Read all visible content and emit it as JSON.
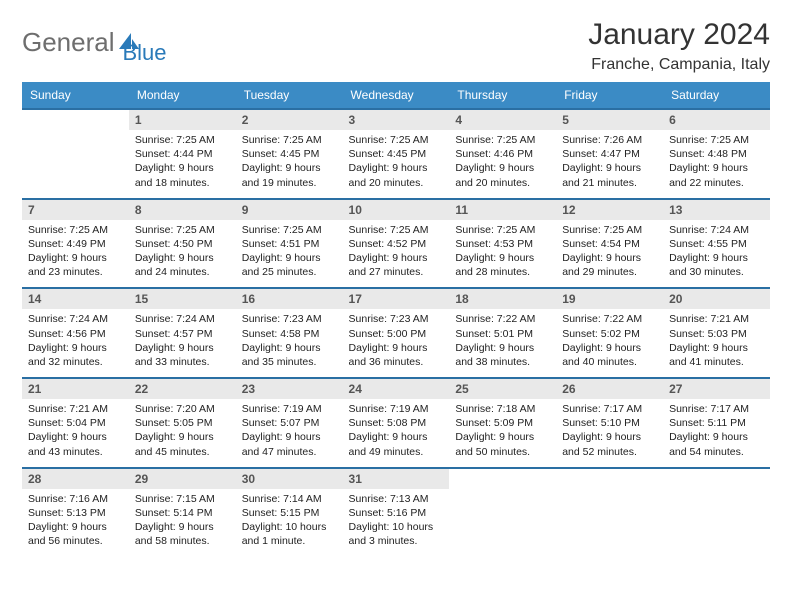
{
  "brand": {
    "part1": "General",
    "part2": "Blue",
    "part1_color": "#6e6e6e",
    "part2_color": "#2a7ab9"
  },
  "title": "January 2024",
  "location": "Franche, Campania, Italy",
  "colors": {
    "header_bg": "#3b8bc5",
    "daynum_bg": "#e9e9e9",
    "rule": "#2a6fa3",
    "text": "#222222",
    "page_bg": "#ffffff"
  },
  "fonts": {
    "title_size_pt": 22,
    "location_size_pt": 12,
    "weekday_size_pt": 9,
    "daynum_size_pt": 9,
    "info_size_pt": 8
  },
  "layout": {
    "columns": 7,
    "aspect_w": 792,
    "aspect_h": 612
  },
  "weekdays": [
    "Sunday",
    "Monday",
    "Tuesday",
    "Wednesday",
    "Thursday",
    "Friday",
    "Saturday"
  ],
  "weeks": [
    {
      "days": [
        null,
        {
          "n": "1",
          "sunrise": "7:25 AM",
          "sunset": "4:44 PM",
          "day_h": "9",
          "day_m": "18"
        },
        {
          "n": "2",
          "sunrise": "7:25 AM",
          "sunset": "4:45 PM",
          "day_h": "9",
          "day_m": "19"
        },
        {
          "n": "3",
          "sunrise": "7:25 AM",
          "sunset": "4:45 PM",
          "day_h": "9",
          "day_m": "20"
        },
        {
          "n": "4",
          "sunrise": "7:25 AM",
          "sunset": "4:46 PM",
          "day_h": "9",
          "day_m": "20"
        },
        {
          "n": "5",
          "sunrise": "7:26 AM",
          "sunset": "4:47 PM",
          "day_h": "9",
          "day_m": "21"
        },
        {
          "n": "6",
          "sunrise": "7:25 AM",
          "sunset": "4:48 PM",
          "day_h": "9",
          "day_m": "22"
        }
      ]
    },
    {
      "days": [
        {
          "n": "7",
          "sunrise": "7:25 AM",
          "sunset": "4:49 PM",
          "day_h": "9",
          "day_m": "23"
        },
        {
          "n": "8",
          "sunrise": "7:25 AM",
          "sunset": "4:50 PM",
          "day_h": "9",
          "day_m": "24"
        },
        {
          "n": "9",
          "sunrise": "7:25 AM",
          "sunset": "4:51 PM",
          "day_h": "9",
          "day_m": "25"
        },
        {
          "n": "10",
          "sunrise": "7:25 AM",
          "sunset": "4:52 PM",
          "day_h": "9",
          "day_m": "27"
        },
        {
          "n": "11",
          "sunrise": "7:25 AM",
          "sunset": "4:53 PM",
          "day_h": "9",
          "day_m": "28"
        },
        {
          "n": "12",
          "sunrise": "7:25 AM",
          "sunset": "4:54 PM",
          "day_h": "9",
          "day_m": "29"
        },
        {
          "n": "13",
          "sunrise": "7:24 AM",
          "sunset": "4:55 PM",
          "day_h": "9",
          "day_m": "30"
        }
      ]
    },
    {
      "days": [
        {
          "n": "14",
          "sunrise": "7:24 AM",
          "sunset": "4:56 PM",
          "day_h": "9",
          "day_m": "32"
        },
        {
          "n": "15",
          "sunrise": "7:24 AM",
          "sunset": "4:57 PM",
          "day_h": "9",
          "day_m": "33"
        },
        {
          "n": "16",
          "sunrise": "7:23 AM",
          "sunset": "4:58 PM",
          "day_h": "9",
          "day_m": "35"
        },
        {
          "n": "17",
          "sunrise": "7:23 AM",
          "sunset": "5:00 PM",
          "day_h": "9",
          "day_m": "36"
        },
        {
          "n": "18",
          "sunrise": "7:22 AM",
          "sunset": "5:01 PM",
          "day_h": "9",
          "day_m": "38"
        },
        {
          "n": "19",
          "sunrise": "7:22 AM",
          "sunset": "5:02 PM",
          "day_h": "9",
          "day_m": "40"
        },
        {
          "n": "20",
          "sunrise": "7:21 AM",
          "sunset": "5:03 PM",
          "day_h": "9",
          "day_m": "41"
        }
      ]
    },
    {
      "days": [
        {
          "n": "21",
          "sunrise": "7:21 AM",
          "sunset": "5:04 PM",
          "day_h": "9",
          "day_m": "43"
        },
        {
          "n": "22",
          "sunrise": "7:20 AM",
          "sunset": "5:05 PM",
          "day_h": "9",
          "day_m": "45"
        },
        {
          "n": "23",
          "sunrise": "7:19 AM",
          "sunset": "5:07 PM",
          "day_h": "9",
          "day_m": "47"
        },
        {
          "n": "24",
          "sunrise": "7:19 AM",
          "sunset": "5:08 PM",
          "day_h": "9",
          "day_m": "49"
        },
        {
          "n": "25",
          "sunrise": "7:18 AM",
          "sunset": "5:09 PM",
          "day_h": "9",
          "day_m": "50"
        },
        {
          "n": "26",
          "sunrise": "7:17 AM",
          "sunset": "5:10 PM",
          "day_h": "9",
          "day_m": "52"
        },
        {
          "n": "27",
          "sunrise": "7:17 AM",
          "sunset": "5:11 PM",
          "day_h": "9",
          "day_m": "54"
        }
      ]
    },
    {
      "days": [
        {
          "n": "28",
          "sunrise": "7:16 AM",
          "sunset": "5:13 PM",
          "day_h": "9",
          "day_m": "56"
        },
        {
          "n": "29",
          "sunrise": "7:15 AM",
          "sunset": "5:14 PM",
          "day_h": "9",
          "day_m": "58"
        },
        {
          "n": "30",
          "sunrise": "7:14 AM",
          "sunset": "5:15 PM",
          "day_h": "10",
          "day_m": "1",
          "day_m_word": "minute"
        },
        {
          "n": "31",
          "sunrise": "7:13 AM",
          "sunset": "5:16 PM",
          "day_h": "10",
          "day_m": "3"
        },
        null,
        null,
        null
      ]
    }
  ],
  "labels": {
    "sunrise": "Sunrise:",
    "sunset": "Sunset:",
    "daylight": "Daylight:",
    "hours_word": "hours",
    "and_word": "and",
    "minutes_word": "minutes."
  }
}
